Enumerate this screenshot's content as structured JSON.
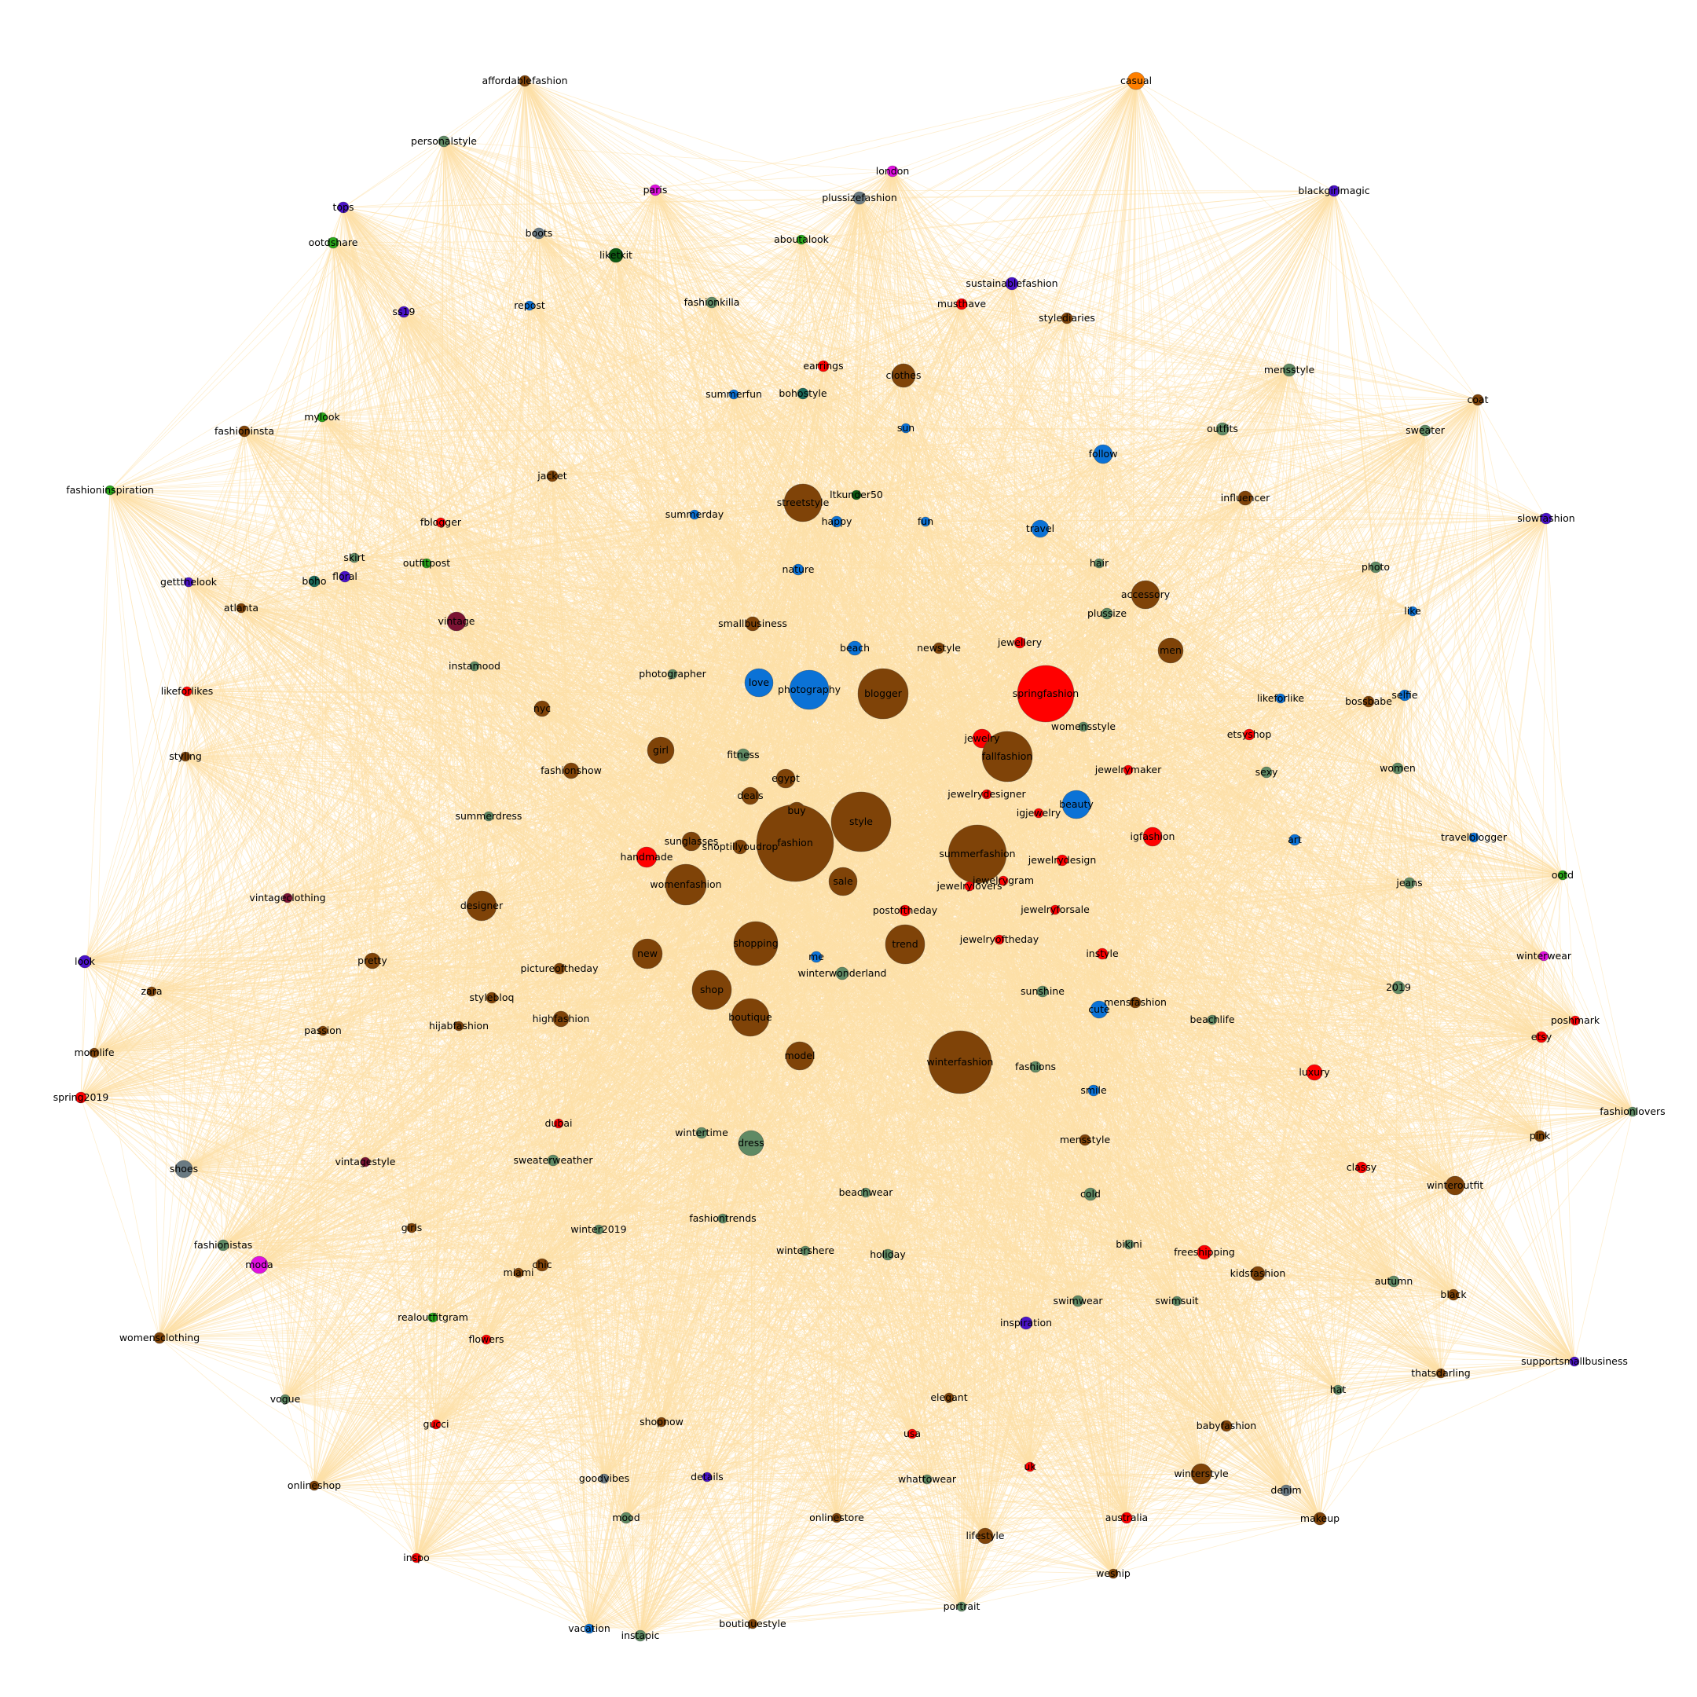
{
  "edge_color": "#fde0a8",
  "colors": {
    "brown": "#7f4308",
    "red": "#ff0000",
    "blue": "#0b72d6",
    "sage": "#5f8a64",
    "orange": "#ff7f00",
    "magenta": "#e010e0",
    "purple": "#4a12c8",
    "green": "#2aa81a",
    "darkgreen": "#0d5a12",
    "maroon": "#7a1233",
    "crimson": "#c8102e",
    "teal": "#1a6a5a",
    "grey": "#6a7a82"
  },
  "nodes": [
    {
      "label": "affordablefashion",
      "color": "brown",
      "size": 7
    },
    {
      "label": "casual",
      "color": "orange",
      "size": 11
    },
    {
      "label": "personalstyle",
      "color": "sage",
      "size": 7
    },
    {
      "label": "london",
      "color": "magenta",
      "size": 7
    },
    {
      "label": "paris",
      "color": "magenta",
      "size": 7
    },
    {
      "label": "plussizefashion",
      "color": "grey",
      "size": 8
    },
    {
      "label": "blackgirlmagic",
      "color": "purple",
      "size": 7
    },
    {
      "label": "tops",
      "color": "purple",
      "size": 7
    },
    {
      "label": "boots",
      "color": "grey",
      "size": 7
    },
    {
      "label": "liketkit",
      "color": "darkgreen",
      "size": 9
    },
    {
      "label": "aboutalook",
      "color": "green",
      "size": 6
    },
    {
      "label": "ootdshare",
      "color": "green",
      "size": 7
    },
    {
      "label": "sustainablefashion",
      "color": "purple",
      "size": 8
    },
    {
      "label": "ss19",
      "color": "purple",
      "size": 7
    },
    {
      "label": "repost",
      "color": "blue",
      "size": 6
    },
    {
      "label": "fashionkilla",
      "color": "sage",
      "size": 7
    },
    {
      "label": "musthave",
      "color": "red",
      "size": 7
    },
    {
      "label": "stylediaries",
      "color": "brown",
      "size": 7
    },
    {
      "label": "earrings",
      "color": "red",
      "size": 7
    },
    {
      "label": "clothes",
      "color": "brown",
      "size": 15
    },
    {
      "label": "mensstyle",
      "color": "sage",
      "size": 8
    },
    {
      "label": "coat",
      "color": "brown",
      "size": 7
    },
    {
      "label": "summerfun",
      "color": "blue",
      "size": 6
    },
    {
      "label": "bohostyle",
      "color": "teal",
      "size": 7
    },
    {
      "label": "mylook",
      "color": "green",
      "size": 6
    },
    {
      "label": "fashioninsta",
      "color": "brown",
      "size": 7
    },
    {
      "label": "sun",
      "color": "blue",
      "size": 6
    },
    {
      "label": "outfits",
      "color": "sage",
      "size": 8
    },
    {
      "label": "sweater",
      "color": "sage",
      "size": 7
    },
    {
      "label": "fashioninspiration",
      "color": "green",
      "size": 6
    },
    {
      "label": "follow",
      "color": "blue",
      "size": 12
    },
    {
      "label": "jacket",
      "color": "brown",
      "size": 7
    },
    {
      "label": "streetstyle",
      "color": "brown",
      "size": 24
    },
    {
      "label": "ltkunder50",
      "color": "darkgreen",
      "size": 6
    },
    {
      "label": "influencer",
      "color": "brown",
      "size": 9
    },
    {
      "label": "slowfashion",
      "color": "purple",
      "size": 7
    },
    {
      "label": "summerday",
      "color": "blue",
      "size": 6
    },
    {
      "label": "happy",
      "color": "blue",
      "size": 7
    },
    {
      "label": "fun",
      "color": "blue",
      "size": 6
    },
    {
      "label": "travel",
      "color": "blue",
      "size": 11
    },
    {
      "label": "fblogger",
      "color": "red",
      "size": 6
    },
    {
      "label": "skirt",
      "color": "sage",
      "size": 6
    },
    {
      "label": "outfitpost",
      "color": "green",
      "size": 6
    },
    {
      "label": "boho",
      "color": "teal",
      "size": 7
    },
    {
      "label": "floral",
      "color": "purple",
      "size": 7
    },
    {
      "label": "hair",
      "color": "sage",
      "size": 6
    },
    {
      "label": "photo",
      "color": "sage",
      "size": 7
    },
    {
      "label": "nature",
      "color": "blue",
      "size": 7
    },
    {
      "label": "accessory",
      "color": "brown",
      "size": 18
    },
    {
      "label": "gettthelook",
      "color": "purple",
      "size": 6
    },
    {
      "label": "atlanta",
      "color": "brown",
      "size": 6
    },
    {
      "label": "plussize",
      "color": "sage",
      "size": 7
    },
    {
      "label": "like",
      "color": "blue",
      "size": 6
    },
    {
      "label": "vintage",
      "color": "maroon",
      "size": 12
    },
    {
      "label": "smallbusiness",
      "color": "brown",
      "size": 9
    },
    {
      "label": "jewellery",
      "color": "red",
      "size": 7
    },
    {
      "label": "men",
      "color": "brown",
      "size": 16
    },
    {
      "label": "beach",
      "color": "blue",
      "size": 9
    },
    {
      "label": "newstyle",
      "color": "brown",
      "size": 7
    },
    {
      "label": "instamood",
      "color": "sage",
      "size": 6
    },
    {
      "label": "photographer",
      "color": "sage",
      "size": 6
    },
    {
      "label": "love",
      "color": "blue",
      "size": 18
    },
    {
      "label": "photography",
      "color": "blue",
      "size": 25
    },
    {
      "label": "blogger",
      "color": "brown",
      "size": 32
    },
    {
      "label": "springfashion",
      "color": "red",
      "size": 36
    },
    {
      "label": "likeforlikes",
      "color": "red",
      "size": 6
    },
    {
      "label": "likeforlike",
      "color": "blue",
      "size": 6
    },
    {
      "label": "bossbabe",
      "color": "brown",
      "size": 7
    },
    {
      "label": "selfie",
      "color": "blue",
      "size": 7
    },
    {
      "label": "nyc",
      "color": "brown",
      "size": 10
    },
    {
      "label": "womensstyle",
      "color": "sage",
      "size": 6
    },
    {
      "label": "girl",
      "color": "brown",
      "size": 17
    },
    {
      "label": "jewelry",
      "color": "red",
      "size": 12
    },
    {
      "label": "etsyshop",
      "color": "red",
      "size": 7
    },
    {
      "label": "styling",
      "color": "brown",
      "size": 6
    },
    {
      "label": "fitness",
      "color": "sage",
      "size": 8
    },
    {
      "label": "fallfashion",
      "color": "brown",
      "size": 32
    },
    {
      "label": "fashionshow",
      "color": "brown",
      "size": 10
    },
    {
      "label": "egypt",
      "color": "brown",
      "size": 12
    },
    {
      "label": "jewelrymaker",
      "color": "red",
      "size": 6
    },
    {
      "label": "sexy",
      "color": "sage",
      "size": 7
    },
    {
      "label": "women",
      "color": "sage",
      "size": 7
    },
    {
      "label": "deals",
      "color": "brown",
      "size": 11
    },
    {
      "label": "jewelrydesigner",
      "color": "red",
      "size": 6
    },
    {
      "label": "beauty",
      "color": "blue",
      "size": 18
    },
    {
      "label": "buy",
      "color": "brown",
      "size": 11
    },
    {
      "label": "igjewelry",
      "color": "red",
      "size": 6
    },
    {
      "label": "summerdress",
      "color": "sage",
      "size": 6
    },
    {
      "label": "style",
      "color": "brown",
      "size": 38
    },
    {
      "label": "sunglasses",
      "color": "brown",
      "size": 12
    },
    {
      "label": "shoptillyoudrop",
      "color": "brown",
      "size": 9
    },
    {
      "label": "fashion",
      "color": "brown",
      "size": 49
    },
    {
      "label": "summerfashion",
      "color": "brown",
      "size": 37
    },
    {
      "label": "igfashion",
      "color": "red",
      "size": 12
    },
    {
      "label": "art",
      "color": "blue",
      "size": 7
    },
    {
      "label": "travelblogger",
      "color": "blue",
      "size": 6
    },
    {
      "label": "handmade",
      "color": "red",
      "size": 13
    },
    {
      "label": "jewelrydesign",
      "color": "red",
      "size": 7
    },
    {
      "label": "ootd",
      "color": "green",
      "size": 6
    },
    {
      "label": "vintageclothing",
      "color": "maroon",
      "size": 6
    },
    {
      "label": "womenfashion",
      "color": "brown",
      "size": 26
    },
    {
      "label": "sale",
      "color": "brown",
      "size": 18
    },
    {
      "label": "jewelrygram",
      "color": "red",
      "size": 6
    },
    {
      "label": "jewelrylovers",
      "color": "red",
      "size": 6
    },
    {
      "label": "jeans",
      "color": "sage",
      "size": 7
    },
    {
      "label": "designer",
      "color": "brown",
      "size": 19
    },
    {
      "label": "postoftheday",
      "color": "red",
      "size": 7
    },
    {
      "label": "jewelryforsale",
      "color": "red",
      "size": 6
    },
    {
      "label": "jewelryoftheday",
      "color": "red",
      "size": 6
    },
    {
      "label": "new",
      "color": "brown",
      "size": 19
    },
    {
      "label": "shopping",
      "color": "brown",
      "size": 28
    },
    {
      "label": "trend",
      "color": "brown",
      "size": 25
    },
    {
      "label": "me",
      "color": "blue",
      "size": 7
    },
    {
      "label": "instyle",
      "color": "red",
      "size": 7
    },
    {
      "label": "winterwear",
      "color": "magenta",
      "size": 6
    },
    {
      "label": "look",
      "color": "purple",
      "size": 8
    },
    {
      "label": "pretty",
      "color": "brown",
      "size": 10
    },
    {
      "label": "pictureoftheday",
      "color": "brown",
      "size": 7
    },
    {
      "label": "winterwonderland",
      "color": "sage",
      "size": 8
    },
    {
      "label": "zara",
      "color": "brown",
      "size": 6
    },
    {
      "label": "stylebloq",
      "color": "brown",
      "size": 7
    },
    {
      "label": "shop",
      "color": "brown",
      "size": 25
    },
    {
      "label": "sunshine",
      "color": "sage",
      "size": 7
    },
    {
      "label": "mensfashion",
      "color": "brown",
      "size": 7
    },
    {
      "label": "2019",
      "color": "sage",
      "size": 8
    },
    {
      "label": "cute",
      "color": "blue",
      "size": 11
    },
    {
      "label": "beachlife",
      "color": "sage",
      "size": 6
    },
    {
      "label": "poshmark",
      "color": "red",
      "size": 6
    },
    {
      "label": "passion",
      "color": "brown",
      "size": 6
    },
    {
      "label": "hijabfashion",
      "color": "brown",
      "size": 6
    },
    {
      "label": "highfashion",
      "color": "brown",
      "size": 10
    },
    {
      "label": "boutique",
      "color": "brown",
      "size": 24
    },
    {
      "label": "etsy",
      "color": "red",
      "size": 7
    },
    {
      "label": "momlife",
      "color": "brown",
      "size": 6
    },
    {
      "label": "model",
      "color": "brown",
      "size": 18
    },
    {
      "label": "winterfashion",
      "color": "brown",
      "size": 40
    },
    {
      "label": "fashions",
      "color": "sage",
      "size": 7
    },
    {
      "label": "luxury",
      "color": "red",
      "size": 10
    },
    {
      "label": "spring2019",
      "color": "red",
      "size": 7
    },
    {
      "label": "smile",
      "color": "blue",
      "size": 7
    },
    {
      "label": "fashionlovers",
      "color": "sage",
      "size": 6
    },
    {
      "label": "dubai",
      "color": "red",
      "size": 6
    },
    {
      "label": "wintertime",
      "color": "sage",
      "size": 7
    },
    {
      "label": "dress",
      "color": "sage",
      "size": 16
    },
    {
      "label": "pink",
      "color": "brown",
      "size": 7
    },
    {
      "label": "mensstyle",
      "color": "brown",
      "size": 7
    },
    {
      "label": "sweaterweather",
      "color": "sage",
      "size": 7
    },
    {
      "label": "vintagestyle",
      "color": "maroon",
      "size": 6
    },
    {
      "label": "shoes",
      "color": "grey",
      "size": 11
    },
    {
      "label": "classy",
      "color": "red",
      "size": 7
    },
    {
      "label": "cold",
      "color": "sage",
      "size": 8
    },
    {
      "label": "winteroutfit",
      "color": "brown",
      "size": 12
    },
    {
      "label": "beachwear",
      "color": "sage",
      "size": 6
    },
    {
      "label": "girls",
      "color": "brown",
      "size": 6
    },
    {
      "label": "winter2019",
      "color": "sage",
      "size": 6
    },
    {
      "label": "fashiontrends",
      "color": "sage",
      "size": 6
    },
    {
      "label": "fashionistas",
      "color": "sage",
      "size": 7
    },
    {
      "label": "moda",
      "color": "magenta",
      "size": 11
    },
    {
      "label": "chic",
      "color": "brown",
      "size": 8
    },
    {
      "label": "wintershere",
      "color": "sage",
      "size": 6
    },
    {
      "label": "holiday",
      "color": "sage",
      "size": 7
    },
    {
      "label": "bikini",
      "color": "sage",
      "size": 6
    },
    {
      "label": "freeshipping",
      "color": "red",
      "size": 9
    },
    {
      "label": "miami",
      "color": "brown",
      "size": 6
    },
    {
      "label": "kidsfashion",
      "color": "brown",
      "size": 9
    },
    {
      "label": "autumn",
      "color": "sage",
      "size": 7
    },
    {
      "label": "black",
      "color": "brown",
      "size": 7
    },
    {
      "label": "swimwear",
      "color": "sage",
      "size": 7
    },
    {
      "label": "swimsuit",
      "color": "sage",
      "size": 6
    },
    {
      "label": "realoutfitgram",
      "color": "green",
      "size": 6
    },
    {
      "label": "inspiration",
      "color": "purple",
      "size": 8
    },
    {
      "label": "womensclothing",
      "color": "brown",
      "size": 7
    },
    {
      "label": "flowers",
      "color": "red",
      "size": 6
    },
    {
      "label": "thatsdarling",
      "color": "brown",
      "size": 6
    },
    {
      "label": "supportsmallbusiness",
      "color": "purple",
      "size": 6
    },
    {
      "label": "vogue",
      "color": "sage",
      "size": 6
    },
    {
      "label": "hat",
      "color": "sage",
      "size": 6
    },
    {
      "label": "elegant",
      "color": "brown",
      "size": 6
    },
    {
      "label": "gucci",
      "color": "red",
      "size": 6
    },
    {
      "label": "shopnow",
      "color": "brown",
      "size": 6
    },
    {
      "label": "babyfashion",
      "color": "brown",
      "size": 7
    },
    {
      "label": "usa",
      "color": "red",
      "size": 6
    },
    {
      "label": "uk",
      "color": "red",
      "size": 6
    },
    {
      "label": "goodvibes",
      "color": "grey",
      "size": 6
    },
    {
      "label": "details",
      "color": "purple",
      "size": 6
    },
    {
      "label": "whattowear",
      "color": "sage",
      "size": 6
    },
    {
      "label": "winterstyle",
      "color": "brown",
      "size": 13
    },
    {
      "label": "onlineshop",
      "color": "brown",
      "size": 6
    },
    {
      "label": "denim",
      "color": "grey",
      "size": 7
    },
    {
      "label": "mood",
      "color": "sage",
      "size": 7
    },
    {
      "label": "onlinestore",
      "color": "brown",
      "size": 6
    },
    {
      "label": "australia",
      "color": "red",
      "size": 7
    },
    {
      "label": "makeup",
      "color": "brown",
      "size": 8
    },
    {
      "label": "lifestyle",
      "color": "brown",
      "size": 10
    },
    {
      "label": "inspo",
      "color": "red",
      "size": 6
    },
    {
      "label": "weship",
      "color": "brown",
      "size": 6
    },
    {
      "label": "portrait",
      "color": "sage",
      "size": 6
    },
    {
      "label": "vacation",
      "color": "blue",
      "size": 6
    },
    {
      "label": "instapic",
      "color": "sage",
      "size": 7
    },
    {
      "label": "boutiquestyle",
      "color": "brown",
      "size": 6
    }
  ]
}
